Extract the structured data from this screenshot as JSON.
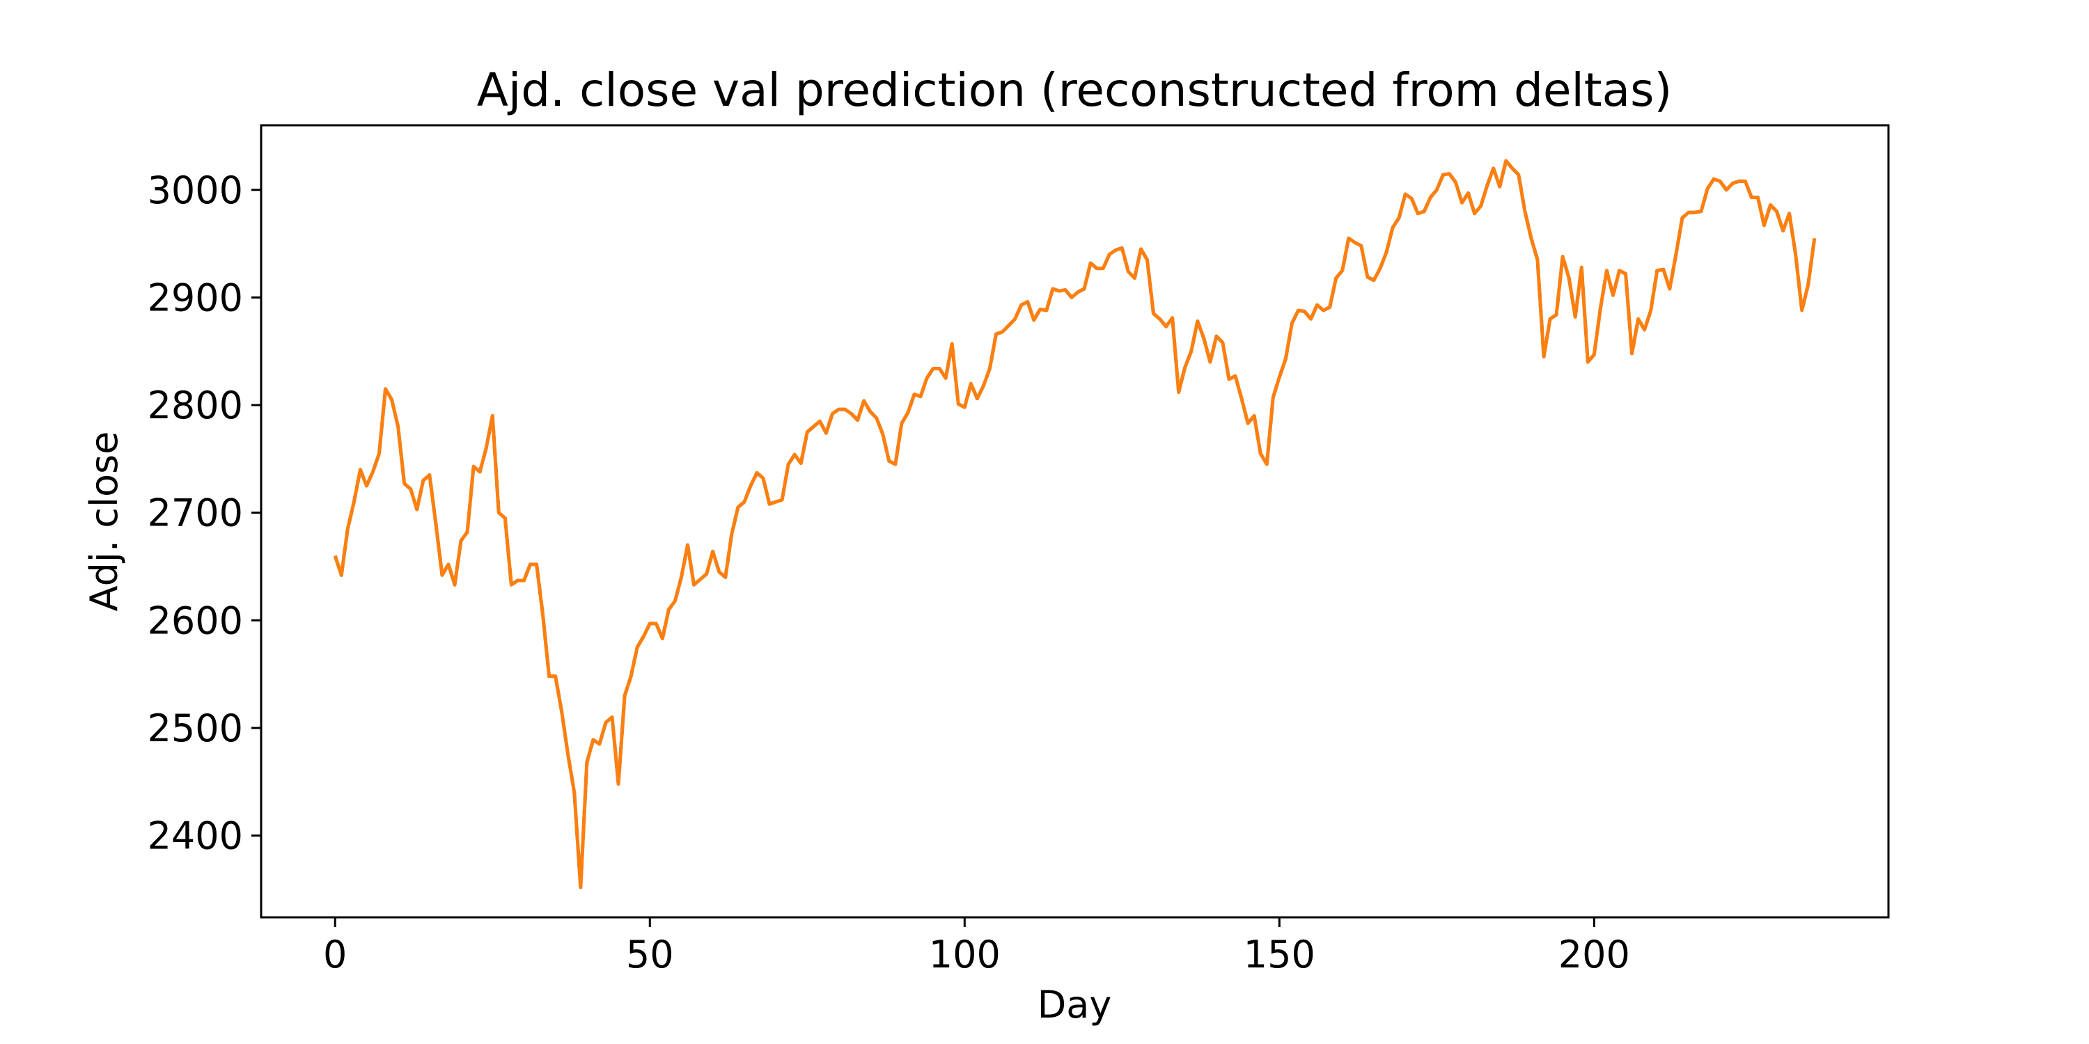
{
  "chart_data": {
    "type": "line",
    "title": "Ajd. close val prediction (reconstructed from deltas)",
    "xlabel": "Day",
    "ylabel": "Adj. close",
    "xlim": [
      -11.75,
      246.75
    ],
    "ylim": [
      2324,
      3060
    ],
    "xticks": [
      0,
      50,
      100,
      150,
      200
    ],
    "yticks": [
      2400,
      2500,
      2600,
      2700,
      2800,
      2900,
      3000
    ],
    "grid": false,
    "legend": "none",
    "x_start": 0,
    "series": [
      {
        "color": "#1f77b4",
        "dash": "dashed",
        "values": [
          2660,
          2642,
          2685,
          2710,
          2740,
          2725,
          2738,
          2755,
          2815,
          2805,
          2780,
          2727,
          2722,
          2703,
          2730,
          2735,
          2690,
          2642,
          2652,
          2633,
          2674,
          2682,
          2743,
          2738,
          2760,
          2790,
          2700,
          2695,
          2633,
          2637,
          2637,
          2652,
          2652,
          2605,
          2548,
          2548,
          2515,
          2475,
          2440,
          2352,
          2468,
          2489,
          2485,
          2505,
          2510,
          2448,
          2530,
          2548,
          2575,
          2585,
          2597,
          2597,
          2583,
          2610,
          2618,
          2640,
          2670,
          2633,
          2638,
          2643,
          2664,
          2645,
          2640,
          2680,
          2705,
          2710,
          2725,
          2737,
          2732,
          2708,
          2710,
          2712,
          2745,
          2754,
          2746,
          2775,
          2780,
          2785,
          2774,
          2792,
          2796,
          2796,
          2792,
          2786,
          2804,
          2794,
          2788,
          2773,
          2748,
          2745,
          2783,
          2793,
          2810,
          2808,
          2825,
          2834,
          2834,
          2825,
          2857,
          2801,
          2798,
          2820,
          2806,
          2818,
          2834,
          2866,
          2868,
          2874,
          2880,
          2893,
          2896,
          2879,
          2889,
          2888,
          2908,
          2906,
          2907,
          2900,
          2905,
          2908,
          2932,
          2927,
          2927,
          2940,
          2944,
          2946,
          2924,
          2918,
          2945,
          2935,
          2885,
          2880,
          2873,
          2881,
          2812,
          2835,
          2850,
          2878,
          2862,
          2840,
          2864,
          2858,
          2824,
          2827,
          2806,
          2783,
          2790,
          2755,
          2745,
          2807,
          2826,
          2843,
          2876,
          2888,
          2887,
          2880,
          2893,
          2888,
          2891,
          2918,
          2925,
          2955,
          2951,
          2948,
          2919,
          2916,
          2927,
          2942,
          2965,
          2974,
          2996,
          2992,
          2978,
          2980,
          2993,
          3000,
          3014,
          3015,
          3007,
          2988,
          2997,
          2978,
          2985,
          3004,
          3020,
          3003,
          3027,
          3020,
          3014,
          2980,
          2955,
          2935,
          2845,
          2880,
          2884,
          2938,
          2918,
          2882,
          2928,
          2840,
          2847,
          2890,
          2925,
          2902,
          2925,
          2922,
          2848,
          2880,
          2870,
          2888,
          2925,
          2926,
          2908,
          2940,
          2974,
          2979,
          2979,
          2980,
          3001,
          3010,
          3008,
          3000,
          3006,
          3008,
          3008,
          2993,
          2993,
          2967,
          2986,
          2980,
          2962,
          2978,
          2940,
          2888,
          2912,
          2955
        ]
      },
      {
        "color": "#ff7f0e",
        "dash": "solid",
        "values": [
          2660,
          2642,
          2685,
          2710,
          2740,
          2725,
          2738,
          2755,
          2815,
          2805,
          2780,
          2727,
          2722,
          2703,
          2730,
          2735,
          2690,
          2642,
          2652,
          2633,
          2674,
          2682,
          2743,
          2738,
          2760,
          2790,
          2700,
          2695,
          2633,
          2637,
          2637,
          2652,
          2652,
          2605,
          2548,
          2548,
          2515,
          2475,
          2440,
          2352,
          2468,
          2489,
          2485,
          2505,
          2510,
          2448,
          2530,
          2548,
          2575,
          2585,
          2597,
          2597,
          2583,
          2610,
          2618,
          2640,
          2670,
          2633,
          2638,
          2643,
          2664,
          2645,
          2640,
          2680,
          2705,
          2710,
          2725,
          2737,
          2732,
          2708,
          2710,
          2712,
          2745,
          2754,
          2746,
          2775,
          2780,
          2785,
          2774,
          2792,
          2796,
          2796,
          2792,
          2786,
          2804,
          2794,
          2788,
          2773,
          2748,
          2745,
          2783,
          2793,
          2810,
          2808,
          2825,
          2834,
          2834,
          2825,
          2857,
          2801,
          2798,
          2820,
          2806,
          2818,
          2834,
          2866,
          2868,
          2874,
          2880,
          2893,
          2896,
          2879,
          2889,
          2888,
          2908,
          2906,
          2907,
          2900,
          2905,
          2908,
          2932,
          2927,
          2927,
          2940,
          2944,
          2946,
          2924,
          2918,
          2945,
          2935,
          2885,
          2880,
          2873,
          2881,
          2812,
          2835,
          2850,
          2878,
          2862,
          2840,
          2864,
          2858,
          2824,
          2827,
          2806,
          2783,
          2790,
          2755,
          2745,
          2807,
          2826,
          2843,
          2876,
          2888,
          2887,
          2880,
          2893,
          2888,
          2891,
          2918,
          2925,
          2955,
          2951,
          2948,
          2919,
          2916,
          2927,
          2942,
          2965,
          2974,
          2996,
          2992,
          2978,
          2980,
          2993,
          3000,
          3014,
          3015,
          3007,
          2988,
          2997,
          2978,
          2985,
          3004,
          3020,
          3003,
          3027,
          3020,
          3014,
          2980,
          2955,
          2935,
          2845,
          2880,
          2884,
          2938,
          2918,
          2882,
          2928,
          2840,
          2847,
          2890,
          2925,
          2902,
          2925,
          2922,
          2848,
          2880,
          2870,
          2888,
          2925,
          2926,
          2908,
          2940,
          2974,
          2979,
          2979,
          2980,
          3001,
          3010,
          3008,
          3000,
          3006,
          3008,
          3008,
          2993,
          2993,
          2967,
          2986,
          2980,
          2962,
          2978,
          2940,
          2888,
          2912,
          2955
        ]
      }
    ]
  }
}
